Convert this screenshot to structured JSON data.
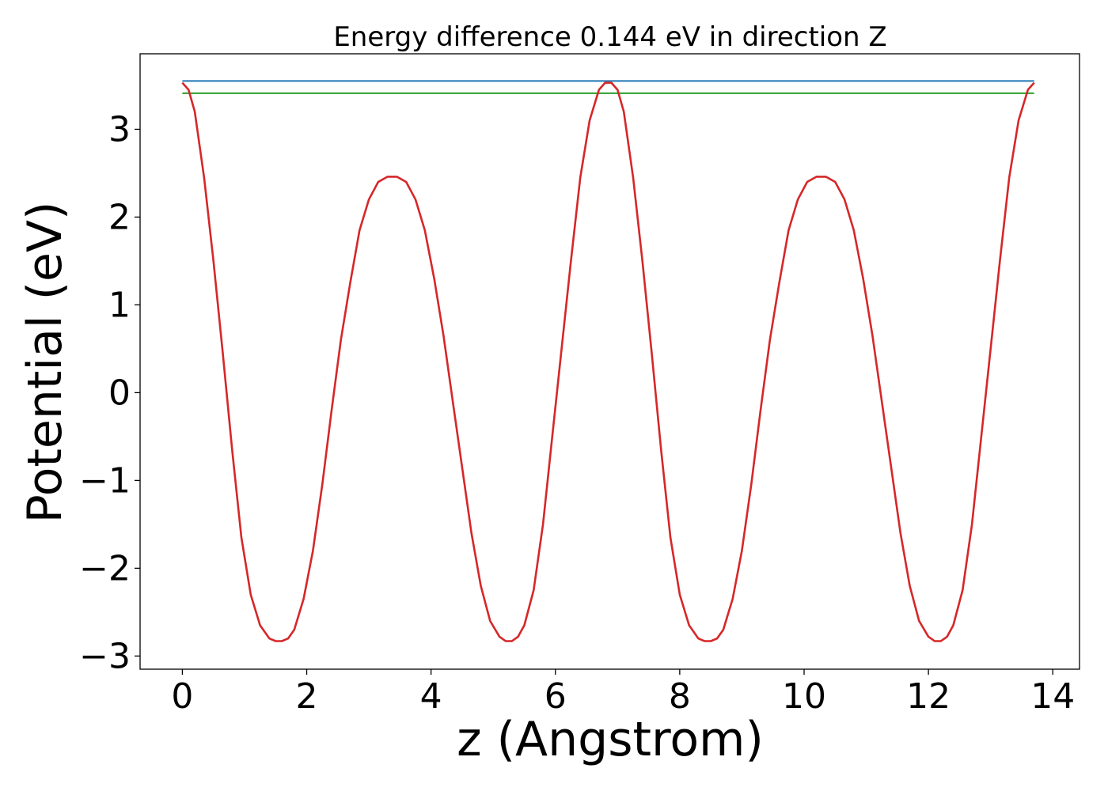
{
  "chart_data": {
    "type": "line",
    "title": "Energy difference 0.144 eV in direction Z",
    "xlabel": "z (Angstrom)",
    "ylabel": "Potential (eV)",
    "xlim": [
      -0.68,
      14.43
    ],
    "ylim": [
      -3.15,
      3.86
    ],
    "xticks": [
      0,
      2,
      4,
      6,
      8,
      10,
      12,
      14
    ],
    "xtick_labels": [
      "0",
      "2",
      "4",
      "6",
      "8",
      "10",
      "12",
      "14"
    ],
    "yticks": [
      -3,
      -2,
      -1,
      0,
      1,
      2,
      3
    ],
    "ytick_labels": [
      "−3",
      "−2",
      "−1",
      "0",
      "1",
      "2",
      "3"
    ],
    "grid": false,
    "series": [
      {
        "color": "#d62728",
        "x": [
          0.0,
          0.1,
          0.2,
          0.35,
          0.5,
          0.65,
          0.8,
          0.95,
          1.1,
          1.25,
          1.4,
          1.5,
          1.6,
          1.7,
          1.8,
          1.95,
          2.1,
          2.25,
          2.4,
          2.55,
          2.7,
          2.85,
          3.0,
          3.15,
          3.3,
          3.45,
          3.6,
          3.75,
          3.9,
          4.05,
          4.2,
          4.35,
          4.5,
          4.65,
          4.8,
          4.95,
          5.1,
          5.2,
          5.3,
          5.4,
          5.5,
          5.65,
          5.8,
          5.95,
          6.1,
          6.25,
          6.4,
          6.55,
          6.7,
          6.8,
          6.9,
          7.0,
          7.1,
          7.25,
          7.4,
          7.55,
          7.7,
          7.85,
          8.0,
          8.15,
          8.3,
          8.4,
          8.5,
          8.6,
          8.7,
          8.85,
          9.0,
          9.15,
          9.3,
          9.45,
          9.6,
          9.75,
          9.9,
          10.05,
          10.2,
          10.35,
          10.5,
          10.65,
          10.8,
          10.95,
          11.1,
          11.25,
          11.4,
          11.55,
          11.7,
          11.85,
          12.0,
          12.1,
          12.2,
          12.3,
          12.4,
          12.55,
          12.7,
          12.85,
          13.0,
          13.15,
          13.3,
          13.45,
          13.6,
          13.7
        ],
        "y": [
          3.53,
          3.45,
          3.2,
          2.45,
          1.5,
          0.45,
          -0.65,
          -1.65,
          -2.3,
          -2.65,
          -2.8,
          -2.83,
          -2.83,
          -2.8,
          -2.7,
          -2.35,
          -1.8,
          -1.05,
          -0.2,
          0.6,
          1.25,
          1.85,
          2.2,
          2.4,
          2.46,
          2.46,
          2.4,
          2.2,
          1.85,
          1.3,
          0.65,
          -0.1,
          -0.85,
          -1.6,
          -2.2,
          -2.6,
          -2.78,
          -2.83,
          -2.83,
          -2.78,
          -2.65,
          -2.25,
          -1.5,
          -0.5,
          0.5,
          1.5,
          2.45,
          3.1,
          3.45,
          3.53,
          3.53,
          3.45,
          3.2,
          2.45,
          1.5,
          0.45,
          -0.65,
          -1.65,
          -2.3,
          -2.65,
          -2.8,
          -2.83,
          -2.83,
          -2.8,
          -2.7,
          -2.35,
          -1.8,
          -1.05,
          -0.2,
          0.6,
          1.25,
          1.85,
          2.2,
          2.4,
          2.46,
          2.46,
          2.4,
          2.2,
          1.85,
          1.3,
          0.65,
          -0.1,
          -0.85,
          -1.6,
          -2.2,
          -2.6,
          -2.78,
          -2.83,
          -2.83,
          -2.78,
          -2.65,
          -2.25,
          -1.5,
          -0.5,
          0.5,
          1.5,
          2.45,
          3.1,
          3.45,
          3.53
        ]
      },
      {
        "color": "#1f77b4",
        "x": [
          0.0,
          13.7
        ],
        "y": [
          3.55,
          3.55
        ]
      },
      {
        "color": "#2ca02c",
        "x": [
          0.0,
          13.7
        ],
        "y": [
          3.41,
          3.41
        ]
      }
    ]
  }
}
